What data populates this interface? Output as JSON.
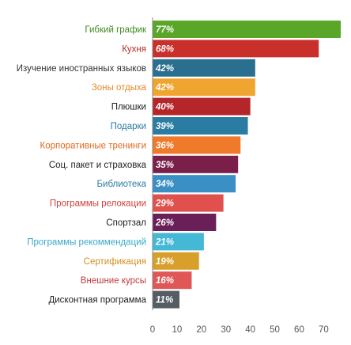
{
  "chart_data": {
    "type": "bar",
    "orientation": "horizontal",
    "categories": [
      "Гибкий график",
      "Кухня",
      "Изучение иностранных языков",
      "Зоны отдыха",
      "Плюшки",
      "Подарки",
      "Корпоративные тренинги",
      "Соц. пакет и страховка",
      "Библиотека",
      "Программы релокации",
      "Спортзал",
      "Программы рекоммендаций",
      "Сертификация",
      "Внешние курсы",
      "Дисконтная программа"
    ],
    "values": [
      77,
      68,
      42,
      42,
      40,
      39,
      36,
      35,
      34,
      29,
      26,
      21,
      19,
      16,
      11
    ],
    "value_labels": [
      "77%",
      "68%",
      "42%",
      "42%",
      "40%",
      "39%",
      "36%",
      "35%",
      "34%",
      "29%",
      "26%",
      "21%",
      "19%",
      "16%",
      "11%"
    ],
    "bar_colors": [
      "#5aa629",
      "#c9302c",
      "#2a6f8f",
      "#f0a530",
      "#b5262a",
      "#2b7ca3",
      "#f07a2b",
      "#7a1f4a",
      "#3a8fc4",
      "#e0504c",
      "#6a1f58",
      "#45b8d6",
      "#d8a02a",
      "#e05757",
      "#555d63"
    ],
    "label_colors": [
      "#3f8a1f",
      "#b52a26",
      "#333333",
      "#e08b2a",
      "#222222",
      "#2b7ca3",
      "#e06a1f",
      "#222222",
      "#2b7ca3",
      "#d04040",
      "#222222",
      "#3aa8c8",
      "#d09020",
      "#c03a3a",
      "#222222"
    ],
    "x_ticks": [
      0,
      10,
      20,
      30,
      40,
      50,
      60,
      70
    ],
    "xlim": [
      0,
      77
    ],
    "ylim": null,
    "title": "",
    "xlabel": "",
    "ylabel": "",
    "grid": false,
    "legend": "none"
  }
}
